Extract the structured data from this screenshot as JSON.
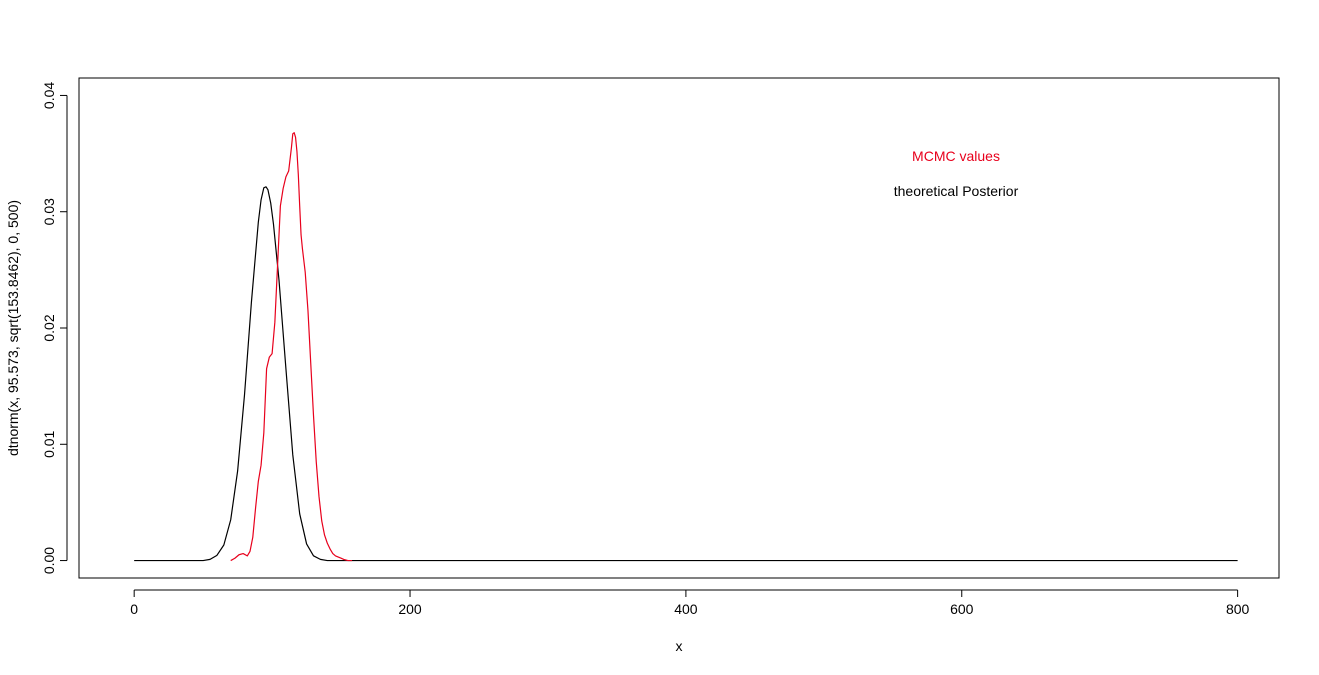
{
  "chart_data": {
    "type": "line",
    "title": "",
    "xlabel": "x",
    "ylabel": "dtnorm(x, 95.573, sqrt(153.8462), 0, 500)",
    "xlim": [
      -40,
      830
    ],
    "ylim": [
      -0.0015,
      0.0415
    ],
    "x_ticks": [
      0,
      200,
      400,
      600,
      800
    ],
    "x_tick_labels": [
      "0",
      "200",
      "400",
      "600",
      "800"
    ],
    "y_ticks": [
      0.0,
      0.01,
      0.02,
      0.03,
      0.04
    ],
    "y_tick_labels": [
      "0.00",
      "0.01",
      "0.02",
      "0.03",
      "0.04"
    ],
    "grid": false,
    "legend": {
      "placement": "top-right",
      "entries": [
        {
          "label": "MCMC values",
          "color": "#e8001c"
        },
        {
          "label": "theoretical Posterior",
          "color": "#000000"
        }
      ]
    },
    "series": [
      {
        "color": "#000000",
        "x": [
          0,
          40,
          50,
          55,
          60,
          65,
          70,
          75,
          80,
          85,
          90,
          92,
          94,
          95.6,
          97,
          99,
          101,
          105,
          110,
          115,
          120,
          125,
          130,
          135,
          140,
          150,
          160,
          200,
          300,
          400,
          500,
          600,
          700,
          800
        ],
        "y": [
          0.0,
          0.0,
          0.0,
          0.0001,
          0.00045,
          0.00134,
          0.00351,
          0.0077,
          0.01426,
          0.02222,
          0.02909,
          0.03102,
          0.03206,
          0.03214,
          0.03188,
          0.03074,
          0.02893,
          0.02412,
          0.01652,
          0.00908,
          0.00402,
          0.00143,
          0.00041,
          0.0001,
          0.0,
          0.0,
          0.0,
          0.0,
          0.0,
          0.0,
          0.0,
          0.0,
          0.0,
          0.0
        ]
      },
      {
        "color": "#e8001c",
        "x": [
          70,
          73,
          76,
          79,
          82,
          84,
          86,
          88,
          90,
          92,
          94,
          96,
          98,
          100,
          102,
          104,
          106,
          108,
          110,
          112,
          114,
          115,
          116,
          117,
          118,
          119,
          120,
          121,
          122,
          124,
          126,
          128,
          130,
          132,
          134,
          136,
          138,
          140,
          142,
          144,
          146,
          148,
          150,
          152,
          155,
          158
        ],
        "y": [
          0.0,
          0.0002,
          0.0005,
          0.0006,
          0.0004,
          0.0008,
          0.002,
          0.0045,
          0.0068,
          0.0082,
          0.011,
          0.0165,
          0.0175,
          0.0178,
          0.0205,
          0.0255,
          0.0305,
          0.032,
          0.033,
          0.0335,
          0.0355,
          0.0367,
          0.0368,
          0.0364,
          0.0352,
          0.0332,
          0.0305,
          0.028,
          0.0268,
          0.0248,
          0.0215,
          0.017,
          0.0125,
          0.0085,
          0.0055,
          0.0034,
          0.0022,
          0.0015,
          0.001,
          0.0006,
          0.0004,
          0.0003,
          0.0002,
          0.0001,
          0.0,
          0.0
        ]
      }
    ]
  }
}
